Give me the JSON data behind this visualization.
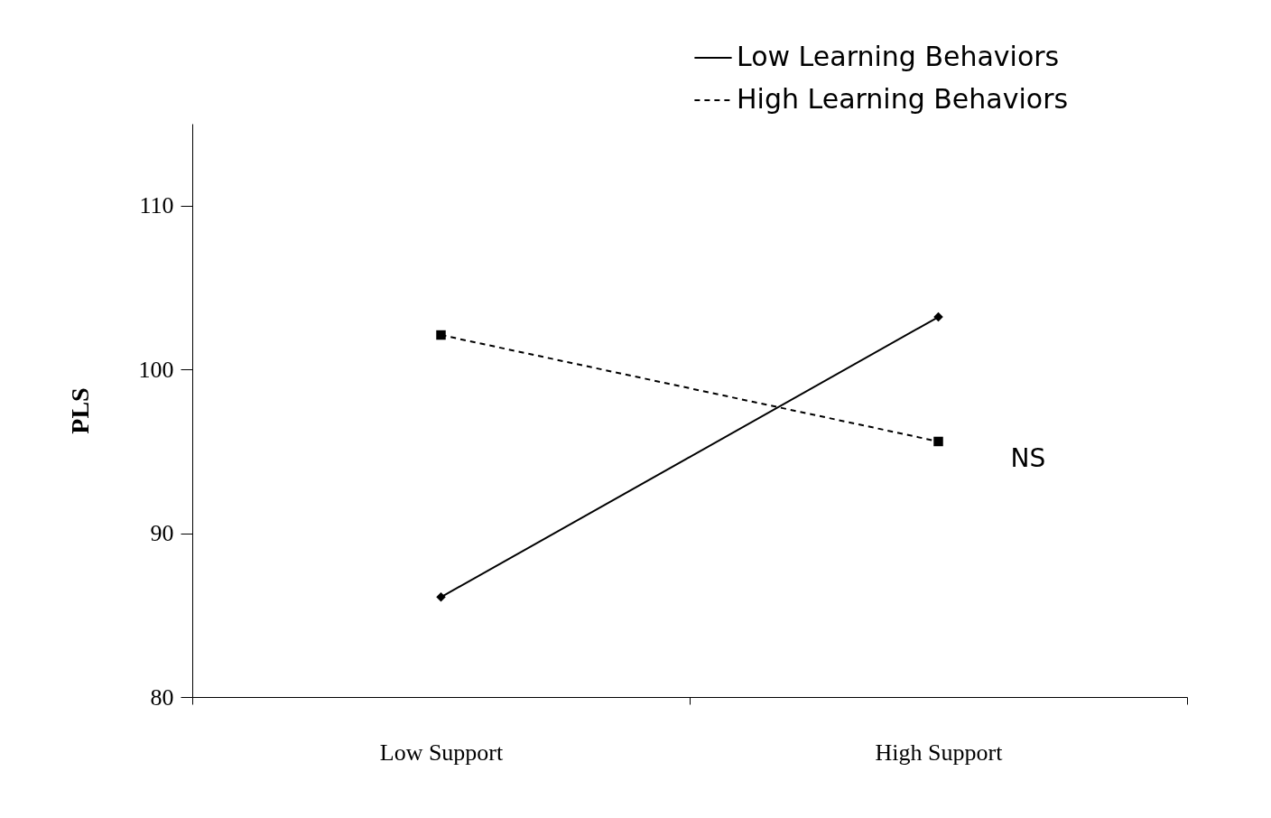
{
  "chart_data": {
    "type": "line",
    "ylabel": "PLS",
    "categories": [
      "Low Support",
      "High Support"
    ],
    "series": [
      {
        "name": "Low Learning Behaviors",
        "color": "#000000",
        "values": [
          86.1,
          103.2
        ],
        "marker": "diamond",
        "line_style": "solid"
      },
      {
        "name": "High Learning Behaviors",
        "color": "#000000",
        "values": [
          102.1,
          95.6
        ],
        "marker": "square",
        "line_style": "dashed"
      }
    ],
    "ylim": [
      80,
      115
    ],
    "yticks": [
      80,
      90,
      100,
      110
    ],
    "grid": false,
    "legend": "top right",
    "annotations": [
      "NS"
    ]
  }
}
